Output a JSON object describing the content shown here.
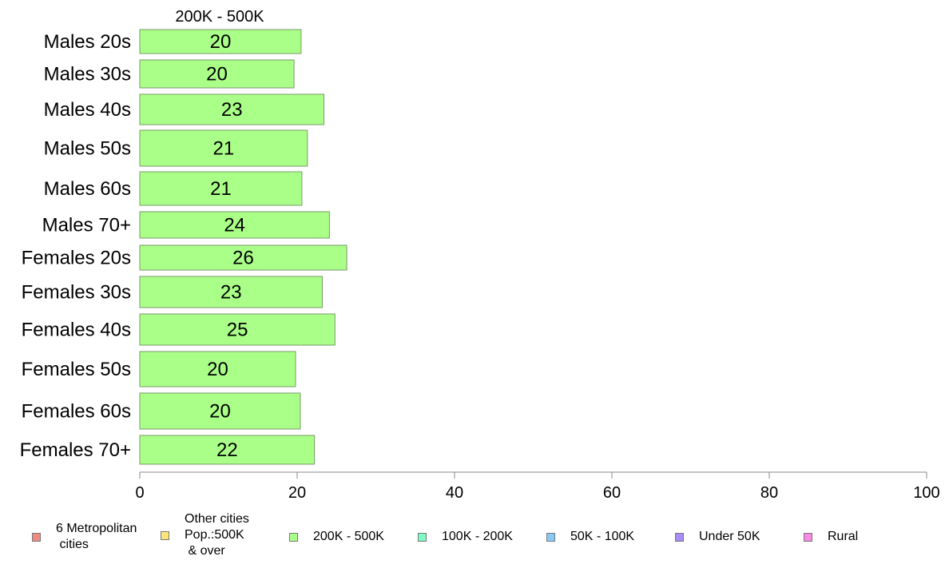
{
  "chart_data": {
    "type": "bar",
    "orientation": "horizontal",
    "title": "200K - 500K",
    "categories": [
      "Males 20s",
      "Males 30s",
      "Males 40s",
      "Males 50s",
      "Males 60s",
      "Males 70+",
      "Females 20s",
      "Females 30s",
      "Females 40s",
      "Females 50s",
      "Females 60s",
      "Females 70+"
    ],
    "series": [
      {
        "name": "200K - 500K",
        "color": "#aaff88",
        "values": [
          20.5,
          19.6,
          23.4,
          21.3,
          20.6,
          24.1,
          26.3,
          23.2,
          24.8,
          19.8,
          20.4,
          22.2
        ],
        "labels": [
          "20",
          "20",
          "23",
          "21",
          "21",
          "24",
          "26",
          "23",
          "25",
          "20",
          "20",
          "22"
        ]
      }
    ],
    "xlim": [
      0,
      100
    ],
    "xticks": [
      0,
      20,
      40,
      60,
      80,
      100
    ],
    "xlabel": "",
    "ylabel": "",
    "grid": false,
    "legend_position": "bottom"
  },
  "legend": [
    {
      "label": "6 Metropolitan\n cities",
      "color": "#f08a80"
    },
    {
      "label": "Other cities\nPop.:500K\n & over",
      "color": "#fde77a"
    },
    {
      "label": "200K - 500K",
      "color": "#aaff88"
    },
    {
      "label": "100K - 200K",
      "color": "#7dfcc6"
    },
    {
      "label": "50K - 100K",
      "color": "#88c9f8"
    },
    {
      "label": "Under 50K",
      "color": "#a98cf5"
    },
    {
      "label": "Rural",
      "color": "#f88ae6"
    }
  ]
}
